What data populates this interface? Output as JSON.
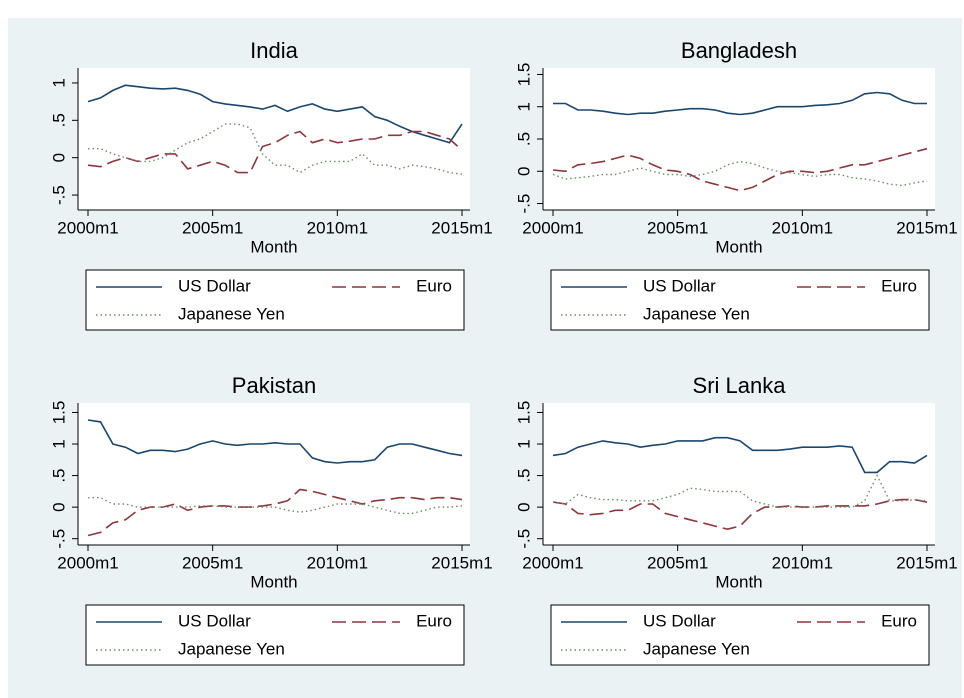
{
  "chart_data": [
    {
      "type": "line",
      "title": "India",
      "xlabel": "Month",
      "x": [
        "2000m1",
        "2000m7",
        "2001m1",
        "2001m7",
        "2002m1",
        "2002m7",
        "2003m1",
        "2003m7",
        "2004m1",
        "2004m7",
        "2005m1",
        "2005m7",
        "2006m1",
        "2006m7",
        "2007m1",
        "2007m7",
        "2008m1",
        "2008m7",
        "2009m1",
        "2009m7",
        "2010m1",
        "2010m7",
        "2011m1",
        "2011m7",
        "2012m1",
        "2012m7",
        "2013m1",
        "2013m7",
        "2014m1",
        "2014m7",
        "2015m1"
      ],
      "xlim": [
        "2000m1",
        "2015m1"
      ],
      "xticks": [
        "2000m1",
        "2005m1",
        "2010m1",
        "2015m1"
      ],
      "ylim": [
        -0.7,
        1.2
      ],
      "yticks": [
        {
          "value": -0.5,
          "label": "-.5"
        },
        0,
        {
          "value": 0.5,
          "label": ".5"
        },
        1
      ],
      "series": [
        {
          "name": "US Dollar",
          "color": "#1a476f",
          "values": [
            0.75,
            0.8,
            0.9,
            0.97,
            0.95,
            0.93,
            0.92,
            0.93,
            0.9,
            0.85,
            0.75,
            0.72,
            0.7,
            0.68,
            0.65,
            0.7,
            0.62,
            0.68,
            0.72,
            0.65,
            0.62,
            0.65,
            0.68,
            0.55,
            0.5,
            0.42,
            0.35,
            0.3,
            0.25,
            0.2,
            0.45
          ]
        },
        {
          "name": "Euro",
          "color": "#90353b",
          "values": [
            -0.1,
            -0.12,
            -0.05,
            0,
            -0.05,
            0,
            0.05,
            0.05,
            -0.15,
            -0.1,
            -0.05,
            -0.1,
            -0.2,
            -0.2,
            0.15,
            0.2,
            0.3,
            0.35,
            0.2,
            0.25,
            0.2,
            0.22,
            0.25,
            0.25,
            0.3,
            0.3,
            0.35,
            0.35,
            0.3,
            0.25,
            0.1
          ]
        },
        {
          "name": "Japanese Yen",
          "color": "#6e8a6a",
          "values": [
            0.12,
            0.12,
            0.05,
            0,
            -0.05,
            -0.05,
            0,
            0.1,
            0.2,
            0.25,
            0.35,
            0.45,
            0.45,
            0.4,
            0.05,
            -0.1,
            -0.1,
            -0.2,
            -0.1,
            -0.05,
            -0.05,
            -0.05,
            0.05,
            -0.1,
            -0.1,
            -0.15,
            -0.1,
            -0.12,
            -0.15,
            -0.2,
            -0.22
          ]
        }
      ]
    },
    {
      "type": "line",
      "title": "Bangladesh",
      "xlabel": "Month",
      "x": [
        "2000m1",
        "2000m7",
        "2001m1",
        "2001m7",
        "2002m1",
        "2002m7",
        "2003m1",
        "2003m7",
        "2004m1",
        "2004m7",
        "2005m1",
        "2005m7",
        "2006m1",
        "2006m7",
        "2007m1",
        "2007m7",
        "2008m1",
        "2008m7",
        "2009m1",
        "2009m7",
        "2010m1",
        "2010m7",
        "2011m1",
        "2011m7",
        "2012m1",
        "2012m7",
        "2013m1",
        "2013m7",
        "2014m1",
        "2014m7",
        "2015m1"
      ],
      "xlim": [
        "2000m1",
        "2015m1"
      ],
      "xticks": [
        "2000m1",
        "2005m1",
        "2010m1",
        "2015m1"
      ],
      "ylim": [
        -0.6,
        1.6
      ],
      "yticks": [
        {
          "value": -0.5,
          "label": "-.5"
        },
        0,
        {
          "value": 0.5,
          "label": ".5"
        },
        1,
        1.5
      ],
      "series": [
        {
          "name": "US Dollar",
          "color": "#1a476f",
          "values": [
            1.05,
            1.05,
            0.95,
            0.95,
            0.93,
            0.9,
            0.88,
            0.9,
            0.9,
            0.93,
            0.95,
            0.97,
            0.97,
            0.95,
            0.9,
            0.88,
            0.9,
            0.95,
            1.0,
            1.0,
            1.0,
            1.02,
            1.03,
            1.05,
            1.1,
            1.2,
            1.22,
            1.2,
            1.1,
            1.05,
            1.05
          ]
        },
        {
          "name": "Euro",
          "color": "#90353b",
          "values": [
            0.02,
            0,
            0.1,
            0.12,
            0.15,
            0.2,
            0.25,
            0.2,
            0.1,
            0.02,
            0,
            -0.05,
            -0.15,
            -0.2,
            -0.25,
            -0.3,
            -0.25,
            -0.15,
            -0.05,
            0,
            0,
            -0.02,
            0,
            0.05,
            0.1,
            0.1,
            0.15,
            0.2,
            0.25,
            0.3,
            0.35
          ]
        },
        {
          "name": "Japanese Yen",
          "color": "#6e8a6a",
          "values": [
            -0.05,
            -0.12,
            -0.1,
            -0.08,
            -0.05,
            -0.05,
            0,
            0.05,
            0,
            -0.05,
            -0.05,
            -0.08,
            -0.05,
            0,
            0.1,
            0.15,
            0.12,
            0.05,
            0,
            -0.02,
            -0.05,
            -0.08,
            -0.05,
            -0.05,
            -0.1,
            -0.12,
            -0.15,
            -0.2,
            -0.22,
            -0.18,
            -0.15
          ]
        }
      ]
    },
    {
      "type": "line",
      "title": "Pakistan",
      "xlabel": "Month",
      "x": [
        "2000m1",
        "2000m7",
        "2001m1",
        "2001m7",
        "2002m1",
        "2002m7",
        "2003m1",
        "2003m7",
        "2004m1",
        "2004m7",
        "2005m1",
        "2005m7",
        "2006m1",
        "2006m7",
        "2007m1",
        "2007m7",
        "2008m1",
        "2008m7",
        "2009m1",
        "2009m7",
        "2010m1",
        "2010m7",
        "2011m1",
        "2011m7",
        "2012m1",
        "2012m7",
        "2013m1",
        "2013m7",
        "2014m1",
        "2014m7",
        "2015m1"
      ],
      "xlim": [
        "2000m1",
        "2015m1"
      ],
      "xticks": [
        "2000m1",
        "2005m1",
        "2010m1",
        "2015m1"
      ],
      "ylim": [
        -0.6,
        1.65
      ],
      "yticks": [
        {
          "value": -0.5,
          "label": "-.5"
        },
        0,
        {
          "value": 0.5,
          "label": ".5"
        },
        1,
        1.5
      ],
      "series": [
        {
          "name": "US Dollar",
          "color": "#1a476f",
          "values": [
            1.38,
            1.35,
            1.0,
            0.95,
            0.85,
            0.9,
            0.9,
            0.88,
            0.92,
            1.0,
            1.05,
            1.0,
            0.98,
            1.0,
            1.0,
            1.02,
            1.0,
            1.0,
            0.78,
            0.72,
            0.7,
            0.72,
            0.72,
            0.75,
            0.95,
            1.0,
            1.0,
            0.95,
            0.9,
            0.85,
            0.82
          ]
        },
        {
          "name": "Euro",
          "color": "#90353b",
          "values": [
            -0.45,
            -0.4,
            -0.25,
            -0.2,
            -0.05,
            0,
            0,
            0.05,
            -0.05,
            0,
            0.02,
            0.02,
            0,
            0,
            0.02,
            0.05,
            0.1,
            0.28,
            0.25,
            0.2,
            0.15,
            0.1,
            0.05,
            0.1,
            0.12,
            0.15,
            0.15,
            0.12,
            0.15,
            0.15,
            0.12
          ]
        },
        {
          "name": "Japanese Yen",
          "color": "#6e8a6a",
          "values": [
            0.15,
            0.15,
            0.05,
            0.05,
            0,
            0,
            0,
            0,
            0,
            0.02,
            0.02,
            0,
            0,
            0,
            0,
            0,
            -0.05,
            -0.08,
            -0.05,
            0,
            0.05,
            0.05,
            0.05,
            0,
            -0.05,
            -0.1,
            -0.1,
            -0.05,
            0,
            0,
            0.02
          ]
        }
      ]
    },
    {
      "type": "line",
      "title": "Sri Lanka",
      "xlabel": "Month",
      "x": [
        "2000m1",
        "2000m7",
        "2001m1",
        "2001m7",
        "2002m1",
        "2002m7",
        "2003m1",
        "2003m7",
        "2004m1",
        "2004m7",
        "2005m1",
        "2005m7",
        "2006m1",
        "2006m7",
        "2007m1",
        "2007m7",
        "2008m1",
        "2008m7",
        "2009m1",
        "2009m7",
        "2010m1",
        "2010m7",
        "2011m1",
        "2011m7",
        "2012m1",
        "2012m7",
        "2013m1",
        "2013m7",
        "2014m1",
        "2014m7",
        "2015m1"
      ],
      "xlim": [
        "2000m1",
        "2015m1"
      ],
      "xticks": [
        "2000m1",
        "2005m1",
        "2010m1",
        "2015m1"
      ],
      "ylim": [
        -0.6,
        1.65
      ],
      "yticks": [
        {
          "value": -0.5,
          "label": "-.5"
        },
        0,
        {
          "value": 0.5,
          "label": ".5"
        },
        1,
        1.5
      ],
      "series": [
        {
          "name": "US Dollar",
          "color": "#1a476f",
          "values": [
            0.82,
            0.85,
            0.95,
            1.0,
            1.05,
            1.02,
            1.0,
            0.95,
            0.98,
            1.0,
            1.05,
            1.05,
            1.05,
            1.1,
            1.1,
            1.05,
            0.9,
            0.9,
            0.9,
            0.92,
            0.95,
            0.95,
            0.95,
            0.97,
            0.95,
            0.55,
            0.55,
            0.72,
            0.72,
            0.7,
            0.82
          ]
        },
        {
          "name": "Euro",
          "color": "#90353b",
          "values": [
            0.08,
            0.05,
            -0.1,
            -0.12,
            -0.1,
            -0.05,
            -0.05,
            0.05,
            0.05,
            -0.1,
            -0.15,
            -0.2,
            -0.25,
            -0.3,
            -0.35,
            -0.3,
            -0.1,
            0,
            0,
            0.02,
            0,
            0,
            0.02,
            0.02,
            0.02,
            0.02,
            0.05,
            0.1,
            0.12,
            0.12,
            0.08
          ]
        },
        {
          "name": "Japanese Yen",
          "color": "#6e8a6a",
          "values": [
            0.08,
            0.05,
            0.2,
            0.15,
            0.12,
            0.12,
            0.1,
            0.1,
            0.1,
            0.15,
            0.2,
            0.3,
            0.28,
            0.25,
            0.25,
            0.25,
            0.1,
            0.05,
            0,
            0,
            0,
            0,
            0,
            0,
            0,
            0.1,
            0.5,
            0.1,
            0.1,
            0.12,
            0.1
          ]
        }
      ]
    }
  ]
}
